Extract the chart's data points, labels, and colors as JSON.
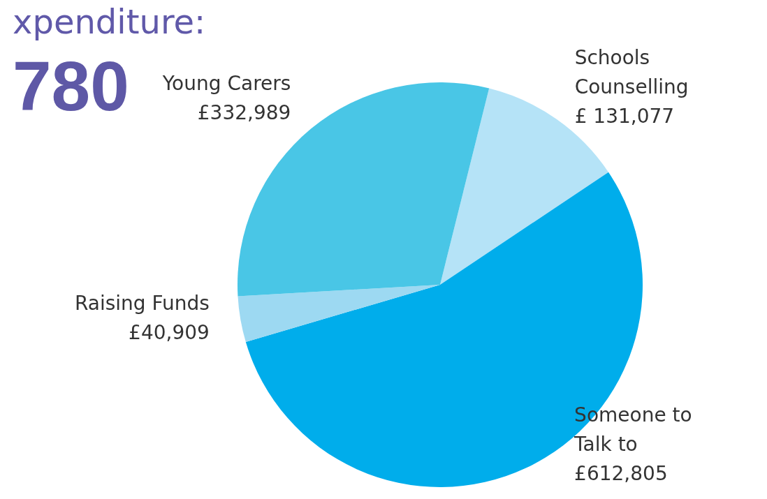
{
  "chart_data": {
    "type": "pie",
    "title": "xpenditure:",
    "subtitle": "780",
    "categories": [
      "Schools Counselling",
      "Someone to Talk to",
      "Raising Funds",
      "Young Carers"
    ],
    "values": [
      131077,
      612805,
      40909,
      332989
    ],
    "value_labels": [
      "£ 131,077",
      "£612,805",
      "£40,909",
      "£332,989"
    ],
    "colors": [
      "#b5e3f7",
      "#00adeb",
      "#9dd9f2",
      "#49c6e6"
    ],
    "legend": false
  }
}
